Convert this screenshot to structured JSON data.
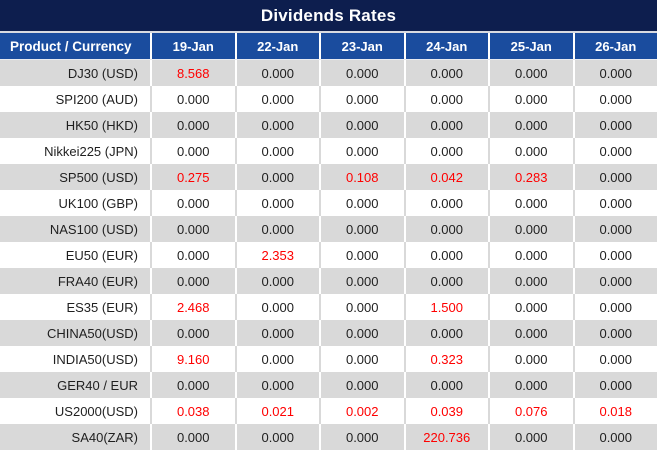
{
  "title": "Dividends Rates",
  "table": {
    "product_header": "Product / Currency",
    "dates": [
      "19-Jan",
      "22-Jan",
      "23-Jan",
      "24-Jan",
      "25-Jan",
      "26-Jan"
    ],
    "rows": [
      {
        "product": "DJ30 (USD)",
        "values": [
          "8.568",
          "0.000",
          "0.000",
          "0.000",
          "0.000",
          "0.000"
        ]
      },
      {
        "product": "SPI200 (AUD)",
        "values": [
          "0.000",
          "0.000",
          "0.000",
          "0.000",
          "0.000",
          "0.000"
        ]
      },
      {
        "product": "HK50 (HKD)",
        "values": [
          "0.000",
          "0.000",
          "0.000",
          "0.000",
          "0.000",
          "0.000"
        ]
      },
      {
        "product": "Nikkei225 (JPN)",
        "values": [
          "0.000",
          "0.000",
          "0.000",
          "0.000",
          "0.000",
          "0.000"
        ]
      },
      {
        "product": "SP500 (USD)",
        "values": [
          "0.275",
          "0.000",
          "0.108",
          "0.042",
          "0.283",
          "0.000"
        ]
      },
      {
        "product": "UK100 (GBP)",
        "values": [
          "0.000",
          "0.000",
          "0.000",
          "0.000",
          "0.000",
          "0.000"
        ]
      },
      {
        "product": "NAS100 (USD)",
        "values": [
          "0.000",
          "0.000",
          "0.000",
          "0.000",
          "0.000",
          "0.000"
        ]
      },
      {
        "product": "EU50 (EUR)",
        "values": [
          "0.000",
          "2.353",
          "0.000",
          "0.000",
          "0.000",
          "0.000"
        ]
      },
      {
        "product": "FRA40 (EUR)",
        "values": [
          "0.000",
          "0.000",
          "0.000",
          "0.000",
          "0.000",
          "0.000"
        ]
      },
      {
        "product": "ES35 (EUR)",
        "values": [
          "2.468",
          "0.000",
          "0.000",
          "1.500",
          "0.000",
          "0.000"
        ]
      },
      {
        "product": "CHINA50(USD)",
        "values": [
          "0.000",
          "0.000",
          "0.000",
          "0.000",
          "0.000",
          "0.000"
        ]
      },
      {
        "product": "INDIA50(USD)",
        "values": [
          "9.160",
          "0.000",
          "0.000",
          "0.323",
          "0.000",
          "0.000"
        ]
      },
      {
        "product": "GER40 / EUR",
        "values": [
          "0.000",
          "0.000",
          "0.000",
          "0.000",
          "0.000",
          "0.000"
        ]
      },
      {
        "product": "US2000(USD)",
        "values": [
          "0.038",
          "0.021",
          "0.002",
          "0.039",
          "0.076",
          "0.018"
        ]
      },
      {
        "product": "SA40(ZAR)",
        "values": [
          "0.000",
          "0.000",
          "0.000",
          "220.736",
          "0.000",
          "0.000"
        ]
      }
    ]
  },
  "colors": {
    "title_bg": "#0d1e4e",
    "header_bg": "#1a4c9e",
    "row_alt_bg": "#d9d9d9",
    "value_text": "#1f1f1f",
    "nonzero_highlight_text": "#ff0000"
  },
  "chart_data": {
    "type": "table",
    "title": "Dividends Rates",
    "columns": [
      "Product / Currency",
      "19-Jan",
      "22-Jan",
      "23-Jan",
      "24-Jan",
      "25-Jan",
      "26-Jan"
    ],
    "rows": [
      [
        "DJ30 (USD)",
        8.568,
        0.0,
        0.0,
        0.0,
        0.0,
        0.0
      ],
      [
        "SPI200 (AUD)",
        0.0,
        0.0,
        0.0,
        0.0,
        0.0,
        0.0
      ],
      [
        "HK50 (HKD)",
        0.0,
        0.0,
        0.0,
        0.0,
        0.0,
        0.0
      ],
      [
        "Nikkei225 (JPN)",
        0.0,
        0.0,
        0.0,
        0.0,
        0.0,
        0.0
      ],
      [
        "SP500 (USD)",
        0.275,
        0.0,
        0.108,
        0.042,
        0.283,
        0.0
      ],
      [
        "UK100 (GBP)",
        0.0,
        0.0,
        0.0,
        0.0,
        0.0,
        0.0
      ],
      [
        "NAS100 (USD)",
        0.0,
        0.0,
        0.0,
        0.0,
        0.0,
        0.0
      ],
      [
        "EU50 (EUR)",
        0.0,
        2.353,
        0.0,
        0.0,
        0.0,
        0.0
      ],
      [
        "FRA40 (EUR)",
        0.0,
        0.0,
        0.0,
        0.0,
        0.0,
        0.0
      ],
      [
        "ES35 (EUR)",
        2.468,
        0.0,
        0.0,
        1.5,
        0.0,
        0.0
      ],
      [
        "CHINA50(USD)",
        0.0,
        0.0,
        0.0,
        0.0,
        0.0,
        0.0
      ],
      [
        "INDIA50(USD)",
        9.16,
        0.0,
        0.0,
        0.323,
        0.0,
        0.0
      ],
      [
        "GER40 / EUR",
        0.0,
        0.0,
        0.0,
        0.0,
        0.0,
        0.0
      ],
      [
        "US2000(USD)",
        0.038,
        0.021,
        0.002,
        0.039,
        0.076,
        0.018
      ],
      [
        "SA40(ZAR)",
        0.0,
        0.0,
        0.0,
        220.736,
        0.0,
        0.0
      ]
    ],
    "notes": "Non-zero dividend values are rendered in red; rows alternate gray/white."
  }
}
